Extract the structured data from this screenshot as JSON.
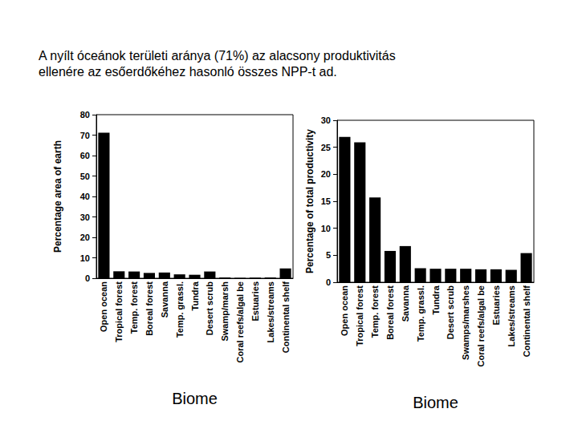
{
  "caption": "A nyílt óceánok területi aránya (71%) az alacsony produktivitás ellenére az esőerdőkéhez hasonló összes NPP-t ad.",
  "chart_data": [
    {
      "type": "bar",
      "ylabel": "Percentage area of earth",
      "xlabel": "Biome",
      "categories": [
        "Open ocean",
        "Tropical forest",
        "Temp. forest",
        "Boreal forest",
        "Savanna",
        "Temp. grassl.",
        "Tundra",
        "Desert scrub",
        "Swamp/marsh",
        "Coral reefs/algal be",
        "Estuaries",
        "Lakes/streams",
        "Continental shelf"
      ],
      "values": [
        71.2,
        3.4,
        3.3,
        2.6,
        2.8,
        1.9,
        1.7,
        3.3,
        0.4,
        0.2,
        0.3,
        0.4,
        4.8
      ],
      "color": "#000000",
      "ylim": [
        0,
        80
      ],
      "yticks": [
        0,
        10,
        20,
        30,
        40,
        50,
        60,
        70,
        80
      ],
      "grid": false
    },
    {
      "type": "bar",
      "ylabel": "Percentage of total productivity",
      "xlabel": "Biome",
      "categories": [
        "Open ocean",
        "Tropical forest",
        "Temp. forest",
        "Boreal forest",
        "Savanna",
        "Temp. grassl.",
        "Tundra",
        "Desert scrub",
        "Swamps/marshes",
        "Coral reefs/algal be",
        "Estuaries",
        "Lakes/streams",
        "Continental shelf"
      ],
      "values": [
        26.9,
        25.9,
        15.7,
        5.8,
        6.7,
        2.6,
        2.5,
        2.5,
        2.5,
        2.4,
        2.4,
        2.3,
        5.4
      ],
      "color": "#000000",
      "ylim": [
        0,
        30
      ],
      "yticks": [
        0,
        5,
        10,
        15,
        20,
        25,
        30
      ],
      "grid": false
    }
  ]
}
